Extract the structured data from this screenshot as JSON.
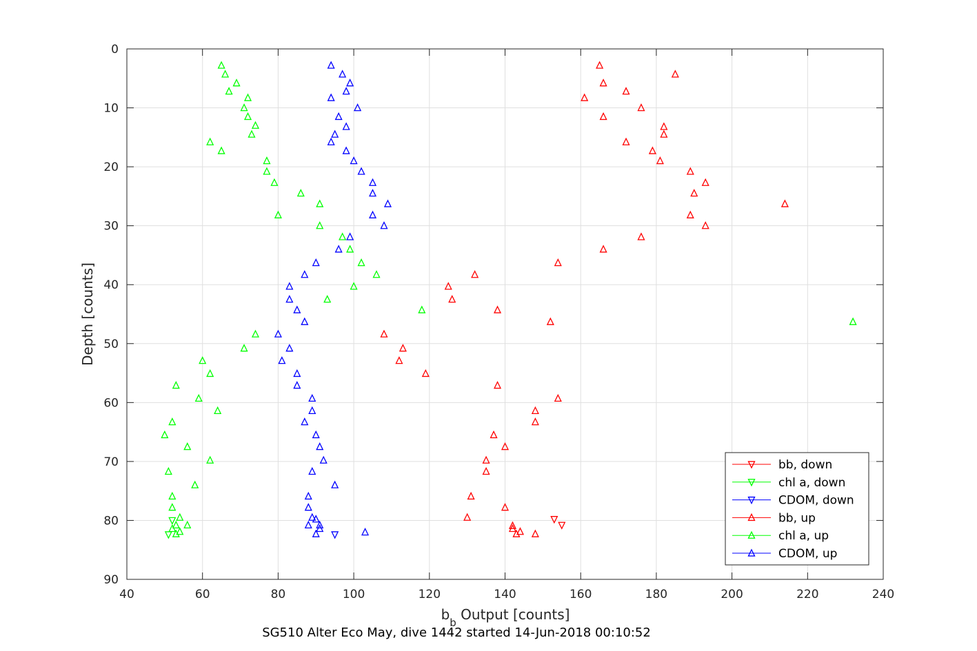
{
  "chart_data": {
    "type": "scatter",
    "title": "SG510 Alter Eco May, dive 1442 started 14-Jun-2018 00:10:52",
    "xlabel_main": "b",
    "xlabel_sub": "b",
    "xlabel_rest": " Output [counts]",
    "ylabel": "Depth [counts]",
    "xlim": [
      40,
      240
    ],
    "ylim": [
      0,
      90
    ],
    "y_reversed": true,
    "grid": true,
    "xticks": [
      "40",
      "60",
      "80",
      "100",
      "120",
      "140",
      "160",
      "180",
      "200",
      "220",
      "240"
    ],
    "yticks": [
      "0",
      "10",
      "20",
      "30",
      "40",
      "50",
      "60",
      "70",
      "80",
      "90"
    ],
    "legend_position": "bottom-right",
    "series": [
      {
        "name": "bb, down",
        "color": "#ff0000",
        "marker": "triangle-down",
        "points": [
          [
            153,
            79.8
          ],
          [
            155,
            80.8
          ]
        ]
      },
      {
        "name": "chl a, down",
        "color": "#00ff00",
        "marker": "triangle-down",
        "points": [
          [
            51,
            82.4
          ],
          [
            52,
            80.0
          ]
        ]
      },
      {
        "name": "CDOM, down",
        "color": "#0000ff",
        "marker": "triangle-down",
        "points": [
          [
            95,
            82.4
          ]
        ]
      },
      {
        "name": "bb, up",
        "color": "#ff0000",
        "marker": "triangle-up",
        "points": [
          [
            165,
            2.8
          ],
          [
            185,
            4.3
          ],
          [
            166,
            5.8
          ],
          [
            172,
            7.2
          ],
          [
            161,
            8.3
          ],
          [
            176,
            10.0
          ],
          [
            166,
            11.5
          ],
          [
            182,
            13.2
          ],
          [
            182,
            14.5
          ],
          [
            172,
            15.8
          ],
          [
            179,
            17.3
          ],
          [
            181,
            19.0
          ],
          [
            189,
            20.8
          ],
          [
            193,
            22.7
          ],
          [
            190,
            24.5
          ],
          [
            214,
            26.3
          ],
          [
            189,
            28.2
          ],
          [
            193,
            30.0
          ],
          [
            176,
            31.9
          ],
          [
            166,
            34.0
          ],
          [
            154,
            36.3
          ],
          [
            132,
            38.3
          ],
          [
            125,
            40.3
          ],
          [
            126,
            42.5
          ],
          [
            138,
            44.3
          ],
          [
            152,
            46.3
          ],
          [
            108,
            48.4
          ],
          [
            113,
            50.8
          ],
          [
            112,
            52.9
          ],
          [
            119,
            55.1
          ],
          [
            138,
            57.1
          ],
          [
            154,
            59.3
          ],
          [
            148,
            61.4
          ],
          [
            148,
            63.3
          ],
          [
            137,
            65.5
          ],
          [
            140,
            67.5
          ],
          [
            135,
            69.8
          ],
          [
            135,
            71.7
          ],
          [
            131,
            75.9
          ],
          [
            140,
            77.8
          ],
          [
            130,
            79.5
          ],
          [
            142,
            80.9
          ],
          [
            142,
            81.4
          ],
          [
            144,
            81.9
          ],
          [
            143,
            82.3
          ],
          [
            148,
            82.3
          ]
        ]
      },
      {
        "name": "chl a, up",
        "color": "#00ff00",
        "marker": "triangle-up",
        "points": [
          [
            65,
            2.8
          ],
          [
            66,
            4.3
          ],
          [
            69,
            5.8
          ],
          [
            67,
            7.2
          ],
          [
            72,
            8.3
          ],
          [
            71,
            10.0
          ],
          [
            72,
            11.5
          ],
          [
            74,
            13.0
          ],
          [
            73,
            14.5
          ],
          [
            62,
            15.8
          ],
          [
            65,
            17.3
          ],
          [
            77,
            19.0
          ],
          [
            77,
            20.8
          ],
          [
            79,
            22.7
          ],
          [
            86,
            24.5
          ],
          [
            91,
            26.3
          ],
          [
            80,
            28.2
          ],
          [
            91,
            30.0
          ],
          [
            97,
            31.9
          ],
          [
            99,
            34.0
          ],
          [
            102,
            36.3
          ],
          [
            106,
            38.3
          ],
          [
            100,
            40.3
          ],
          [
            93,
            42.5
          ],
          [
            118,
            44.3
          ],
          [
            232,
            46.3
          ],
          [
            74,
            48.4
          ],
          [
            71,
            50.8
          ],
          [
            60,
            52.9
          ],
          [
            62,
            55.1
          ],
          [
            53,
            57.1
          ],
          [
            59,
            59.3
          ],
          [
            64,
            61.4
          ],
          [
            52,
            63.3
          ],
          [
            50,
            65.5
          ],
          [
            56,
            67.5
          ],
          [
            62,
            69.8
          ],
          [
            51,
            71.7
          ],
          [
            58,
            74.0
          ],
          [
            52,
            75.9
          ],
          [
            52,
            77.8
          ],
          [
            54,
            79.5
          ],
          [
            56,
            80.8
          ],
          [
            53,
            80.8
          ],
          [
            52,
            81.4
          ],
          [
            54,
            81.9
          ],
          [
            53,
            82.3
          ]
        ]
      },
      {
        "name": "CDOM, up",
        "color": "#0000ff",
        "marker": "triangle-up",
        "points": [
          [
            94,
            2.8
          ],
          [
            97,
            4.3
          ],
          [
            99,
            5.8
          ],
          [
            98,
            7.2
          ],
          [
            94,
            8.3
          ],
          [
            101,
            10.0
          ],
          [
            96,
            11.5
          ],
          [
            98,
            13.2
          ],
          [
            95,
            14.5
          ],
          [
            94,
            15.8
          ],
          [
            98,
            17.3
          ],
          [
            100,
            19.0
          ],
          [
            102,
            20.8
          ],
          [
            105,
            22.7
          ],
          [
            105,
            24.5
          ],
          [
            109,
            26.3
          ],
          [
            105,
            28.2
          ],
          [
            108,
            30.0
          ],
          [
            99,
            31.9
          ],
          [
            96,
            34.0
          ],
          [
            90,
            36.3
          ],
          [
            87,
            38.3
          ],
          [
            83,
            40.3
          ],
          [
            83,
            42.5
          ],
          [
            85,
            44.3
          ],
          [
            87,
            46.3
          ],
          [
            80,
            48.4
          ],
          [
            83,
            50.8
          ],
          [
            81,
            52.9
          ],
          [
            85,
            55.1
          ],
          [
            85,
            57.1
          ],
          [
            89,
            59.3
          ],
          [
            89,
            61.4
          ],
          [
            87,
            63.3
          ],
          [
            90,
            65.5
          ],
          [
            91,
            67.5
          ],
          [
            92,
            69.8
          ],
          [
            89,
            71.7
          ],
          [
            95,
            74.0
          ],
          [
            88,
            75.9
          ],
          [
            88,
            77.8
          ],
          [
            89,
            79.5
          ],
          [
            90,
            79.8
          ],
          [
            91,
            80.8
          ],
          [
            88,
            80.8
          ],
          [
            91,
            81.4
          ],
          [
            90,
            82.3
          ],
          [
            103,
            82.0
          ]
        ]
      }
    ]
  }
}
